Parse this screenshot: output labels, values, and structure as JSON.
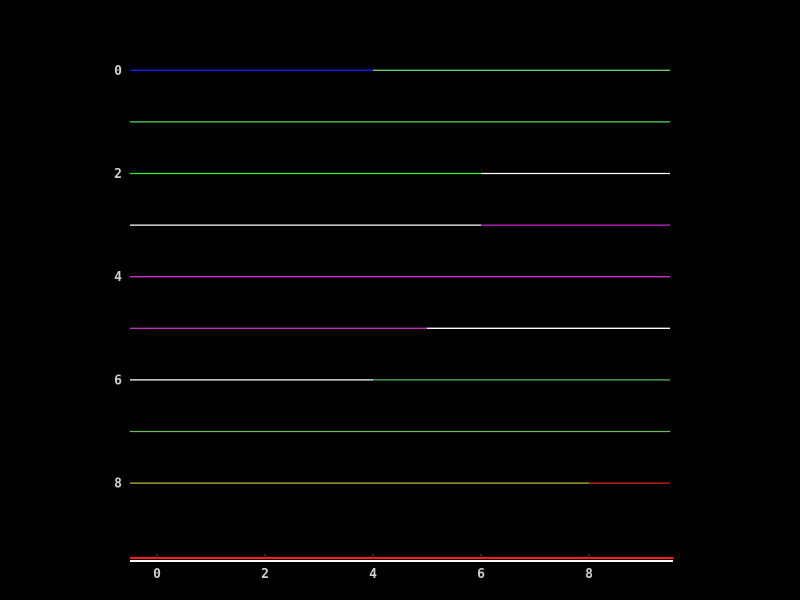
{
  "chart_data": {
    "type": "line",
    "title": "",
    "xlabel": "",
    "ylabel": "",
    "y_inverted": true,
    "grid": false,
    "legend": "none",
    "xlim": [
      -0.5,
      9.5
    ],
    "ylim": [
      -0.5,
      9.5
    ],
    "xticks": [
      "0",
      "2",
      "4",
      "6",
      "8"
    ],
    "yticks": [
      "0",
      "2",
      "4",
      "6",
      "8"
    ],
    "background": "#000000",
    "tick_label_color": "#d0d0d0",
    "baseline_color": "#ffffff",
    "baseline_accent_color": "#ff1a1a",
    "rows": [
      {
        "y": 0,
        "segments": [
          {
            "x": [
              0,
              4
            ],
            "color": "#1a1aff"
          },
          {
            "x": [
              4,
              9
            ],
            "color": "#66cc66"
          }
        ]
      },
      {
        "y": 1,
        "segments": [
          {
            "x": [
              0,
              9
            ],
            "color": "#55dd55"
          }
        ]
      },
      {
        "y": 2,
        "segments": [
          {
            "x": [
              0,
              6
            ],
            "color": "#33ee33"
          },
          {
            "x": [
              6,
              9
            ],
            "color": "#ffffff"
          }
        ]
      },
      {
        "y": 3,
        "segments": [
          {
            "x": [
              0,
              6
            ],
            "color": "#ffffff"
          },
          {
            "x": [
              6,
              9
            ],
            "color": "#cc22cc"
          }
        ]
      },
      {
        "y": 4,
        "segments": [
          {
            "x": [
              0,
              9
            ],
            "color": "#cc33cc"
          }
        ]
      },
      {
        "y": 5,
        "segments": [
          {
            "x": [
              0,
              5
            ],
            "color": "#bb33bb"
          },
          {
            "x": [
              5,
              9
            ],
            "color": "#ffffff"
          }
        ]
      },
      {
        "y": 6,
        "segments": [
          {
            "x": [
              0,
              4
            ],
            "color": "#ffffff"
          },
          {
            "x": [
              4,
              9
            ],
            "color": "#55bb55"
          }
        ]
      },
      {
        "y": 7,
        "segments": [
          {
            "x": [
              0,
              9
            ],
            "color": "#66bb66"
          }
        ]
      },
      {
        "y": 8,
        "segments": [
          {
            "x": [
              0,
              8
            ],
            "color": "#bbbb33"
          },
          {
            "x": [
              8,
              9
            ],
            "color": "#dd2222"
          }
        ]
      }
    ]
  }
}
